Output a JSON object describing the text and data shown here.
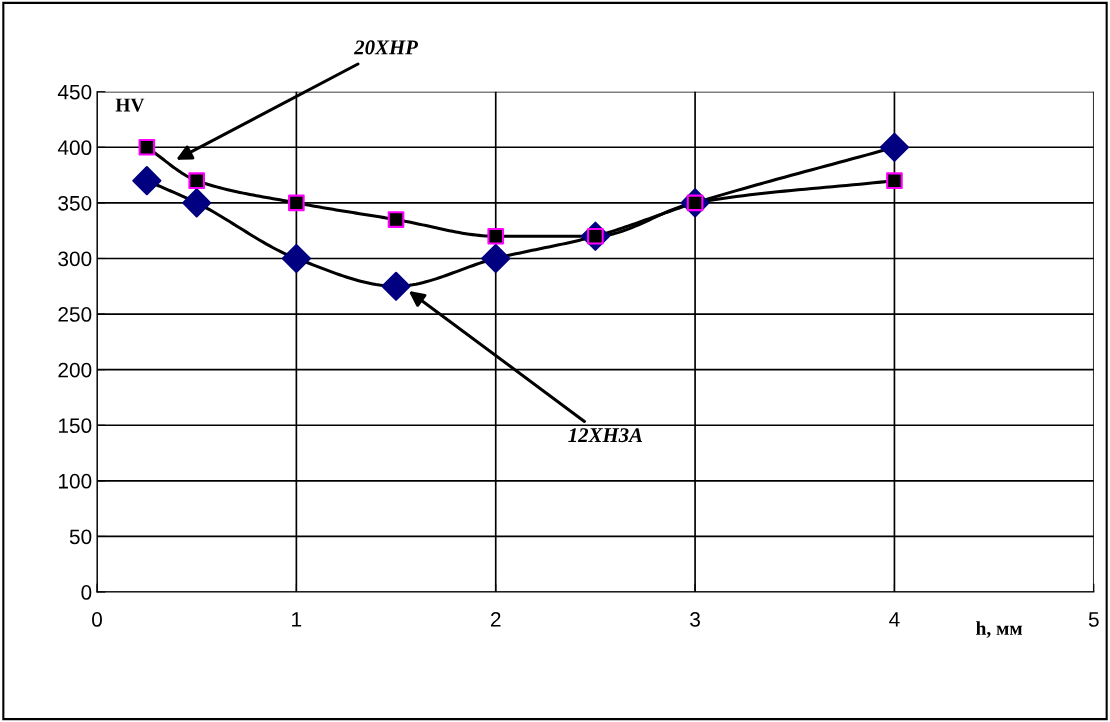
{
  "chart_data": {
    "type": "line",
    "xlabel": "h, мм",
    "ylabel": "HV",
    "x": [
      0.25,
      0.5,
      1,
      1.5,
      2,
      2.5,
      3,
      4
    ],
    "series": [
      {
        "name": "20ХНР",
        "color": "#000000",
        "marker": "square",
        "values": [
          400,
          370,
          350,
          335,
          320,
          320,
          350,
          370
        ]
      },
      {
        "name": "12ХН3А",
        "color": "#000080",
        "marker": "diamond",
        "values": [
          370,
          350,
          300,
          275,
          300,
          320,
          350,
          400
        ]
      }
    ],
    "xlim": [
      0,
      5
    ],
    "xticks": [
      0,
      1,
      2,
      3,
      4,
      5
    ],
    "ylim": [
      0,
      450
    ],
    "yticks": [
      0,
      50,
      100,
      150,
      200,
      250,
      300,
      350,
      400,
      450
    ],
    "grid": true,
    "line_style": "solid"
  }
}
